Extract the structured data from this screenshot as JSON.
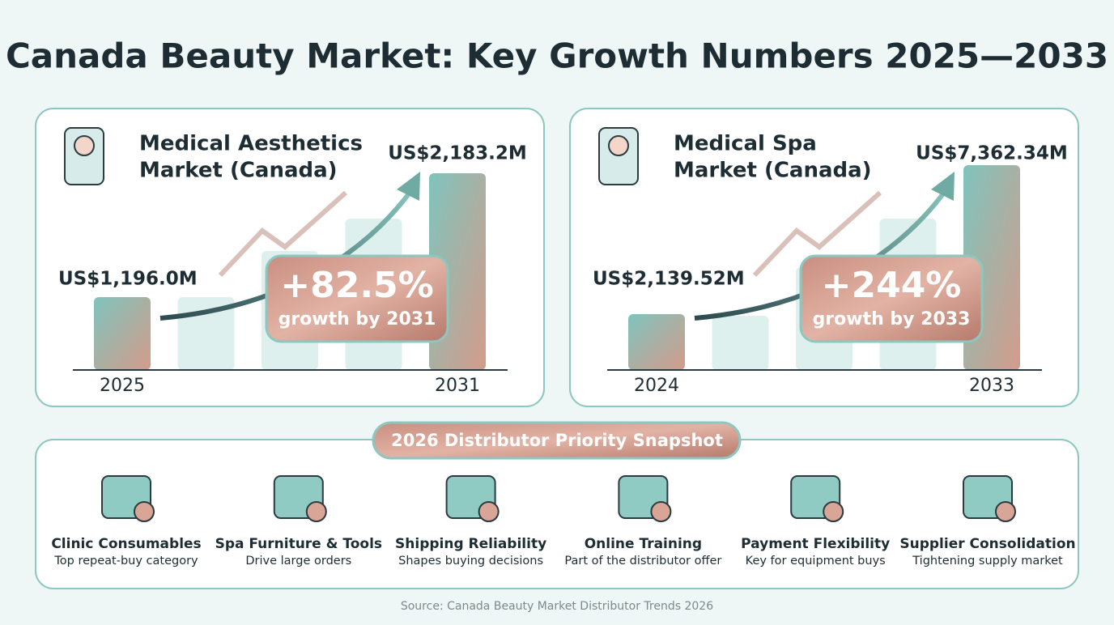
{
  "title": "Canada Beauty Market: Key Growth Numbers 2025—2033",
  "panels": [
    {
      "title": [
        "Medical Aesthetics",
        "Market (Canada)"
      ],
      "start_label": "US$1,196.0M",
      "end_label": "US$2,183.2M",
      "growth": "+82.5%",
      "growth_note": "growth by 2031",
      "start_year": "2025",
      "end_year": "2031"
    },
    {
      "title": [
        "Medical Spa",
        "Market (Canada)"
      ],
      "start_label": "US$2,139.52M",
      "end_label": "US$7,362.34M",
      "growth": "+244%",
      "growth_note": "growth by 2033",
      "start_year": "2024",
      "end_year": "2033"
    }
  ],
  "snapshot": {
    "title": "2026 Distributor Priority Snapshot",
    "items": [
      {
        "title": "Clinic Consumables",
        "subtitle": "Top repeat-buy category"
      },
      {
        "title": "Spa Furniture & Tools",
        "subtitle": "Drive large orders"
      },
      {
        "title": "Shipping Reliability",
        "subtitle": "Shapes buying decisions"
      },
      {
        "title": "Online Training",
        "subtitle": "Part of the distributor offer"
      },
      {
        "title": "Payment Flexibility",
        "subtitle": "Key for equipment buys"
      },
      {
        "title": "Supplier Consolidation",
        "subtitle": "Tightening supply market"
      }
    ]
  },
  "source": "Source: Canada Beauty Market Distributor Trends 2026"
}
